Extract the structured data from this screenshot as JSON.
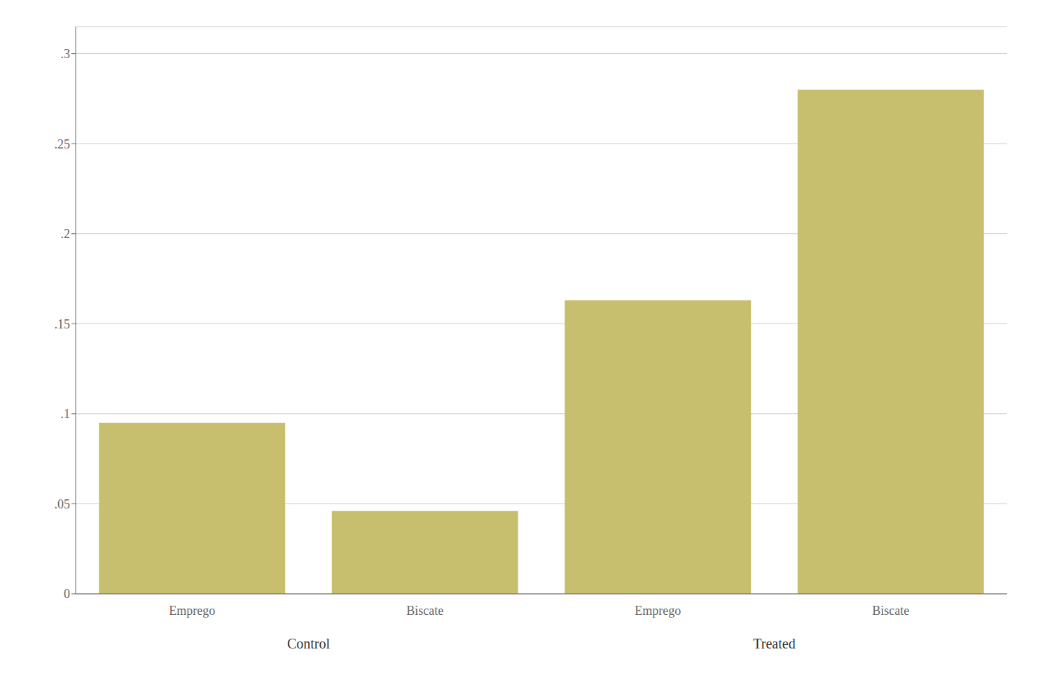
{
  "chart_data": {
    "type": "bar",
    "categories": [
      "Emprego",
      "Biscate",
      "Emprego",
      "Biscate"
    ],
    "groups": [
      "Control",
      "Control",
      "Treated",
      "Treated"
    ],
    "values": [
      0.095,
      0.046,
      0.163,
      0.28
    ],
    "color": "#C8BF6E",
    "ylim": [
      0,
      0.315
    ],
    "yticks": [
      0,
      {
        "value": 0.05,
        "label": ".05"
      },
      {
        "value": 0.1,
        "label": ".1"
      },
      {
        "value": 0.15,
        "label": ".15"
      },
      {
        "value": 0.2,
        "label": ".2"
      },
      {
        "value": 0.25,
        "label": ".25"
      },
      {
        "value": 0.3,
        "label": ".3"
      }
    ],
    "grid": true
  }
}
